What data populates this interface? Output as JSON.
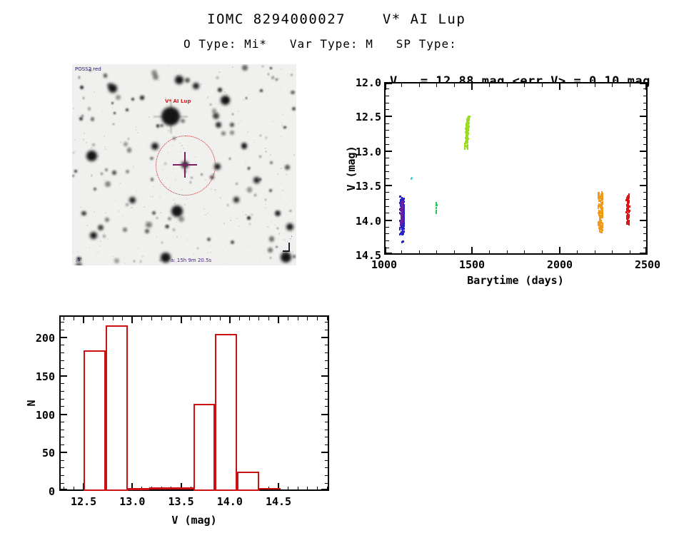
{
  "header": {
    "title": "IOMC 8294000027    V* AI Lup",
    "subtitle": "O Type: Mi*   Var Type: M   SP Type:"
  },
  "finder_chart": {
    "survey_label": "POSS2 red",
    "target_label": "V* AI Lup",
    "coords_label": "a: 15h 9m 20.5s",
    "scale_label": ",5'",
    "circle_color": "#cc2222",
    "cross_color": "#7a2060",
    "label_color": "#cc2222",
    "annotation_color": "#1a1a6e"
  },
  "chart_data": [
    {
      "type": "scatter",
      "title_prefix": "V",
      "title_sub": "med",
      "title_rest": " = 12.88 mag <err_V> = 0.10 mag",
      "xlabel": "Barytime (days)",
      "ylabel": "V (mag)",
      "xlim": [
        1000,
        2500
      ],
      "ylim_top": 12.0,
      "ylim_bottom": 14.5,
      "xticks": [
        1000,
        1500,
        2000,
        2500
      ],
      "yticks": [
        12.0,
        12.5,
        13.0,
        13.5,
        14.0,
        14.5
      ],
      "x_minor_step": 100,
      "y_minor_step": 0.1,
      "grid": false,
      "clusters": [
        {
          "name": "epoch1-blue",
          "x": 1102,
          "x_jitter": 12,
          "y_min": 13.65,
          "y_max": 14.22,
          "n": 130,
          "color": "#2823c6"
        },
        {
          "name": "epoch1-purple",
          "x": 1101,
          "x_jitter": 7,
          "y_min": 13.72,
          "y_max": 14.08,
          "n": 45,
          "color": "#6b1fa0"
        },
        {
          "name": "epoch1-outlier",
          "x": 1106,
          "x_jitter": 4,
          "y_min": 14.29,
          "y_max": 14.33,
          "n": 3,
          "color": "#2823c6"
        },
        {
          "name": "epoch2-cyan",
          "x": 1160,
          "x_jitter": 5,
          "y_min": 13.35,
          "y_max": 13.4,
          "n": 3,
          "color": "#40d8d8"
        },
        {
          "name": "epoch3-green",
          "x": 1297,
          "x_jitter": 3,
          "y_min": 13.75,
          "y_max": 13.9,
          "n": 9,
          "color": "#2fc84f"
        },
        {
          "name": "epoch4-chartreuse",
          "x": 1478,
          "x_jitter": 9,
          "y_min": 12.5,
          "y_max": 12.97,
          "n": 115,
          "color": "#9bdc20",
          "slant": -12
        },
        {
          "name": "epoch5-orange",
          "x": 2232,
          "x_jitter": 13,
          "y_min": 13.6,
          "y_max": 14.18,
          "n": 125,
          "color": "#f09a18"
        },
        {
          "name": "epoch6-red",
          "x": 2388,
          "x_jitter": 9,
          "y_min": 13.62,
          "y_max": 14.06,
          "n": 90,
          "color": "#dc1414"
        }
      ]
    },
    {
      "type": "bar",
      "xlabel": "V (mag)",
      "ylabel": "N",
      "xlim": [
        12.25,
        15.02
      ],
      "ylim": [
        0,
        229
      ],
      "xticks": [
        12.5,
        13.0,
        13.5,
        14.0,
        14.5
      ],
      "yticks": [
        0,
        50,
        100,
        150,
        200
      ],
      "x_minor_step": 0.1,
      "y_minor_step": 10,
      "grid": false,
      "bar_color": "#cc1111",
      "bin_edges": [
        12.5,
        12.725,
        12.95,
        13.175,
        13.4,
        13.625,
        13.85,
        14.075,
        14.3,
        14.525
      ],
      "counts": [
        183,
        216,
        1,
        3,
        3,
        114,
        205,
        25,
        2
      ]
    }
  ]
}
